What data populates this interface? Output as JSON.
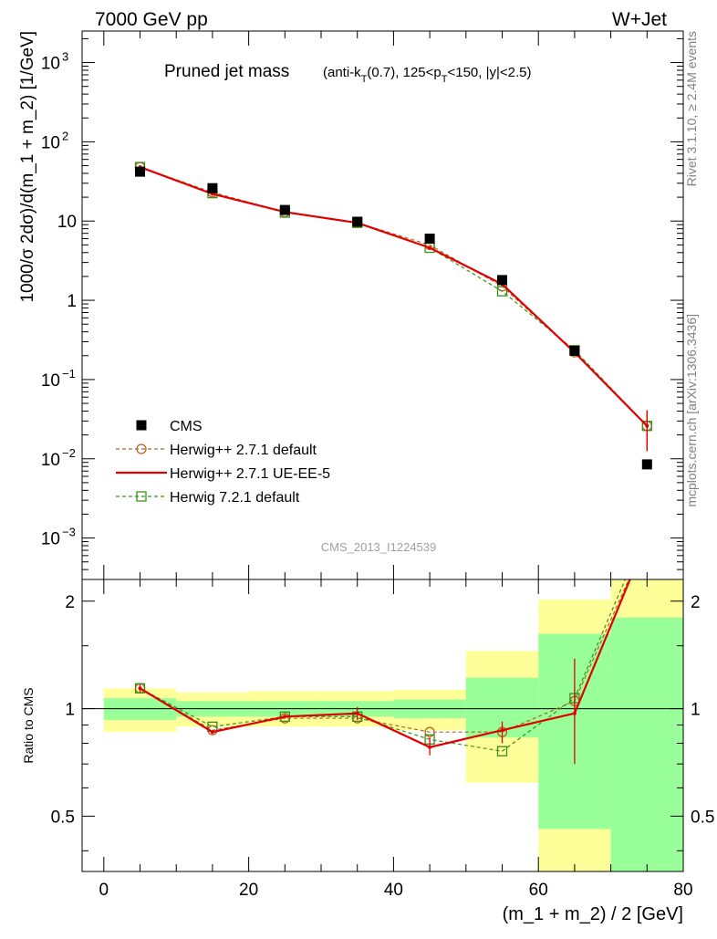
{
  "header": {
    "left": "7000 GeV pp",
    "right": "W+Jet"
  },
  "plot_title": {
    "main": "Pruned jet mass",
    "sub_parts": [
      "(anti-k",
      "T",
      "(0.7), 125<p",
      "T",
      "<150, |y|<2.5)"
    ]
  },
  "side_labels": {
    "rivet": "Rivet 3.1.10, ≥ 2.4M events",
    "mcplots": "mcplots.cern.ch [arXiv:1306.3436]"
  },
  "watermark": "CMS_2013_I1224539",
  "chart_data": [
    {
      "type": "line",
      "panel": "main",
      "ylabel": "1000/σ 2dσ)/d(m_1 + m_2) [1/GeV]",
      "yscale": "log",
      "ylim": [
        0.0003,
        2500
      ],
      "xlim": [
        -3,
        80
      ],
      "x": [
        5,
        15,
        25,
        35,
        45,
        55,
        65,
        75
      ],
      "y_tick_labels": [
        {
          "base": "10",
          "exp": "3",
          "value": 1000
        },
        {
          "base": "10",
          "exp": "2",
          "value": 100
        },
        {
          "base": "10",
          "exp": "",
          "value": 10
        },
        {
          "base": "1",
          "exp": "",
          "value": 1
        },
        {
          "base": "10",
          "exp": "−1",
          "value": 0.1
        },
        {
          "base": "10",
          "exp": "−2",
          "value": 0.01
        },
        {
          "base": "10",
          "exp": "−3",
          "value": 0.001
        }
      ],
      "series": [
        {
          "name": "CMS",
          "color": "#000000",
          "style": "markers-square",
          "values": [
            42,
            26,
            13.8,
            9.8,
            6.0,
            1.8,
            0.23,
            0.0085
          ]
        },
        {
          "name": "Herwig++ 2.7.1 default",
          "color": "#b5651d",
          "style": "dashed-circle",
          "values": [
            48,
            23,
            13.0,
            9.5,
            5.0,
            1.5,
            0.22,
            0.026
          ]
        },
        {
          "name": "Herwig++ 2.7.1 UE-EE-5",
          "color": "#e00000",
          "style": "solid",
          "values": [
            48,
            22,
            13.0,
            9.5,
            4.6,
            1.6,
            0.22,
            0.026
          ]
        },
        {
          "name": "Herwig 7.2.1 default",
          "color": "#3a8f1a",
          "style": "dashed-square",
          "values": [
            48,
            22.5,
            12.8,
            9.5,
            4.6,
            1.3,
            0.235,
            0.026
          ]
        }
      ],
      "legend": "bottom-left"
    },
    {
      "type": "line",
      "panel": "ratio",
      "ylabel": "Ratio to CMS",
      "xlabel": "(m_1 + m_2) / 2 [GeV]",
      "xlim": [
        -3,
        80
      ],
      "ylim": [
        0.35,
        2.3
      ],
      "x_ticks": [
        0,
        20,
        40,
        60,
        80
      ],
      "y_ticks": [
        0.5,
        1,
        2
      ],
      "x": [
        5,
        15,
        25,
        35,
        45,
        55,
        65,
        75
      ],
      "bands": {
        "edges": [
          0,
          10,
          20,
          30,
          40,
          50,
          60,
          70,
          80
        ],
        "inner_lo": [
          0.93,
          0.95,
          0.95,
          0.95,
          0.94,
          0.83,
          0.46,
          0.3
        ],
        "inner_hi": [
          1.07,
          1.05,
          1.05,
          1.05,
          1.06,
          1.22,
          1.62,
          1.8
        ],
        "outer_lo": [
          0.86,
          0.89,
          0.89,
          0.89,
          0.87,
          0.62,
          0.3,
          0.3
        ],
        "outer_hi": [
          1.14,
          1.11,
          1.12,
          1.12,
          1.13,
          1.45,
          2.02,
          2.3
        ],
        "inner_color": "#99ff99",
        "outer_color": "#ffff99"
      },
      "series": [
        {
          "name": "Herwig++ 2.7.1 default",
          "color": "#b5651d",
          "style": "dashed-circle",
          "values": [
            1.14,
            0.87,
            0.94,
            0.94,
            0.86,
            0.86,
            1.05,
            3.0
          ]
        },
        {
          "name": "Herwig++ 2.7.1 UE-EE-5",
          "color": "#e00000",
          "style": "solid",
          "values": [
            1.14,
            0.86,
            0.95,
            0.97,
            0.78,
            0.87,
            0.97,
            3.0
          ]
        },
        {
          "name": "Herwig 7.2.1 default",
          "color": "#3a8f1a",
          "style": "dashed-square",
          "values": [
            1.14,
            0.89,
            0.95,
            0.95,
            0.82,
            0.76,
            1.07,
            3.2
          ]
        }
      ]
    }
  ]
}
